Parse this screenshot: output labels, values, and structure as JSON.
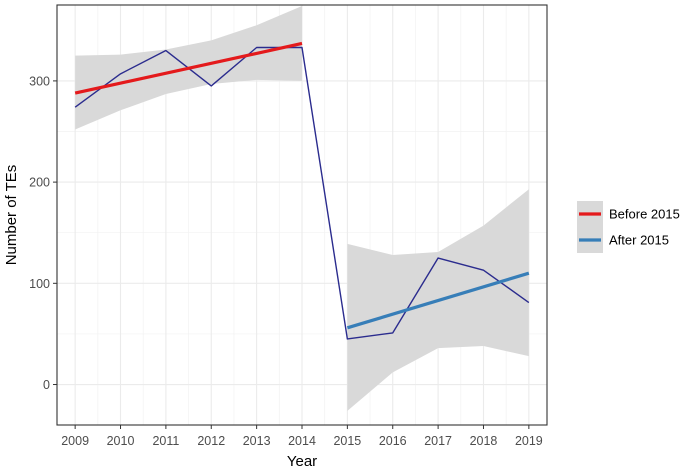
{
  "chart_data": {
    "type": "line",
    "xlabel": "Year",
    "ylabel": "Number of TEs",
    "x_ticks": [
      "2009",
      "2010",
      "2011",
      "2012",
      "2013",
      "2014",
      "2015",
      "2016",
      "2017",
      "2018",
      "2019"
    ],
    "y_ticks": [
      "0",
      "100",
      "200",
      "300"
    ],
    "xlim": [
      2008.6,
      2019.4
    ],
    "ylim": [
      -40,
      375
    ],
    "grid": true,
    "legend_position": "right",
    "observed": {
      "x": [
        2009,
        2010,
        2011,
        2012,
        2013,
        2014,
        2015,
        2016,
        2017,
        2018,
        2019
      ],
      "y": [
        274,
        307,
        330,
        295,
        333,
        333,
        45,
        51,
        125,
        113,
        81
      ],
      "color": "#2b2c8e"
    },
    "series": [
      {
        "name": "Before 2015",
        "color": "#e41a1c",
        "x": [
          2009,
          2014
        ],
        "y": [
          288,
          337
        ],
        "band_x": [
          2009,
          2010,
          2011,
          2012,
          2013,
          2014
        ],
        "band_lower": [
          252,
          271,
          287,
          297,
          301,
          300
        ],
        "band_upper": [
          325,
          326,
          331,
          340,
          355,
          374
        ]
      },
      {
        "name": "After 2015",
        "color": "#377eb8",
        "x": [
          2015,
          2019
        ],
        "y": [
          56,
          110
        ],
        "band_x": [
          2015,
          2016,
          2017,
          2018,
          2019
        ],
        "band_lower": [
          -26,
          12,
          36,
          38,
          28
        ],
        "band_upper": [
          139,
          128,
          131,
          157,
          193
        ]
      }
    ]
  }
}
